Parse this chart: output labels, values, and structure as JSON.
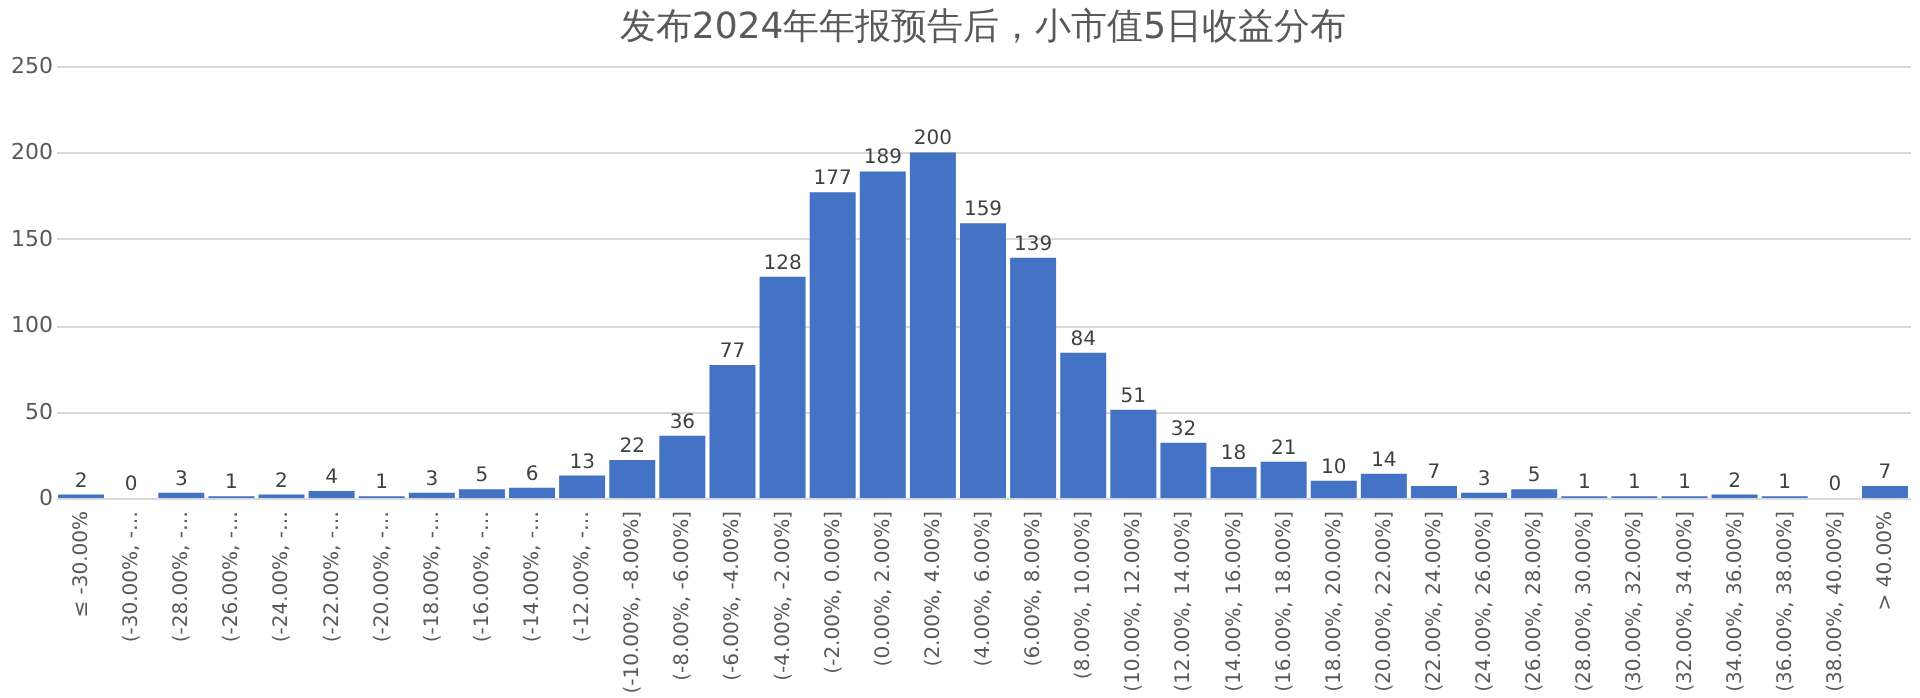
{
  "chart_data": {
    "type": "bar",
    "title": "发布2024年年报预告后，小市值5日收益分布",
    "categories": [
      "≤ -30.00%",
      "(-30.00%, -…",
      "(-28.00%, -…",
      "(-26.00%, -…",
      "(-24.00%, -…",
      "(-22.00%, -…",
      "(-20.00%, -…",
      "(-18.00%, -…",
      "(-16.00%, -…",
      "(-14.00%, -…",
      "(-12.00%, -…",
      "(-10.00%, -8.00%]",
      "(-8.00%, -6.00%]",
      "(-6.00%, -4.00%]",
      "(-4.00%, -2.00%]",
      "(-2.00%, 0.00%]",
      "(0.00%, 2.00%]",
      "(2.00%, 4.00%]",
      "(4.00%, 6.00%]",
      "(6.00%, 8.00%]",
      "(8.00%, 10.00%]",
      "(10.00%, 12.00%]",
      "(12.00%, 14.00%]",
      "(14.00%, 16.00%]",
      "(16.00%, 18.00%]",
      "(18.00%, 20.00%]",
      "(20.00%, 22.00%]",
      "(22.00%, 24.00%]",
      "(24.00%, 26.00%]",
      "(26.00%, 28.00%]",
      "(28.00%, 30.00%]",
      "(30.00%, 32.00%]",
      "(32.00%, 34.00%]",
      "(34.00%, 36.00%]",
      "(36.00%, 38.00%]",
      "(38.00%, 40.00%]",
      "> 40.00%"
    ],
    "values": [
      2,
      0,
      3,
      1,
      2,
      4,
      1,
      3,
      5,
      6,
      13,
      22,
      36,
      77,
      128,
      177,
      189,
      200,
      159,
      139,
      84,
      51,
      32,
      18,
      21,
      10,
      14,
      7,
      3,
      5,
      1,
      1,
      1,
      2,
      1,
      0,
      7
    ],
    "color": "#4472c4",
    "ylim": [
      0,
      250
    ],
    "yticks": [
      0,
      50,
      100,
      150,
      200,
      250
    ],
    "grid": "y",
    "data_labels": true
  }
}
